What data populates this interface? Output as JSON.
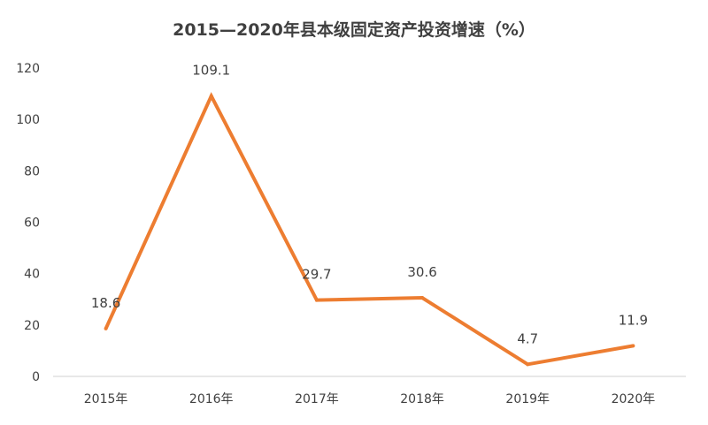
{
  "chart_data": {
    "type": "line",
    "title": "2015—2020年县本级固定资产投资增速（%）",
    "categories": [
      "2015年",
      "2016年",
      "2017年",
      "2018年",
      "2019年",
      "2020年"
    ],
    "series": [
      {
        "values": [
          18.6,
          109.1,
          29.7,
          30.6,
          4.7,
          11.9
        ],
        "color": "#ED7D31"
      }
    ],
    "data_labels": [
      "18.6",
      "109.1",
      "29.7",
      "30.6",
      "4.7",
      "11.9"
    ],
    "ylim": [
      0,
      120
    ],
    "yticks": [
      0,
      20,
      40,
      60,
      80,
      100,
      120
    ],
    "grid": false,
    "legend": "none",
    "axis_color": "#d0d0d0",
    "text_color": "#404040"
  }
}
